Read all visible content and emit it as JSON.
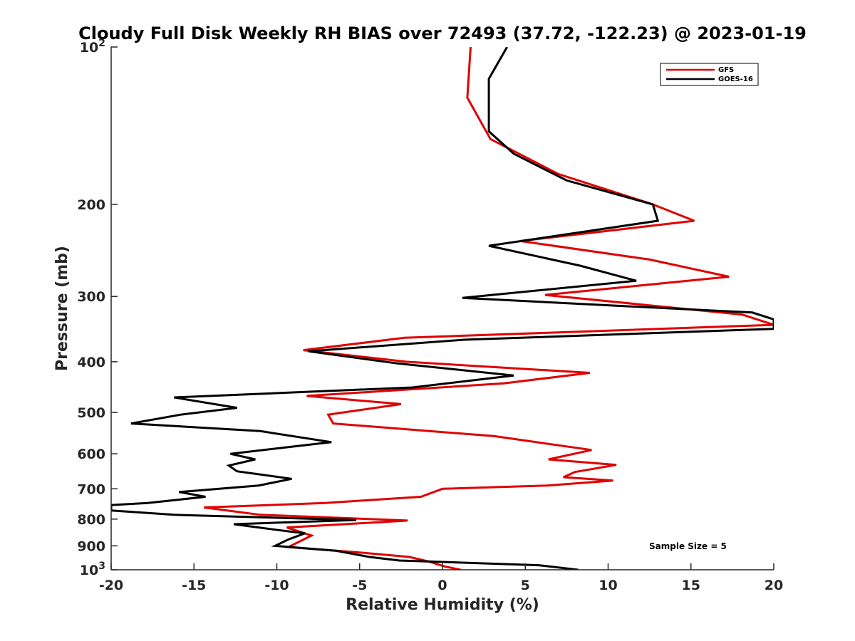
{
  "chart_data": {
    "type": "line",
    "title": "Cloudy Full Disk Weekly RH BIAS over 72493 (37.72, -122.23) @ 2023-01-19",
    "xlabel": "Relative Humidity (%)",
    "ylabel": "Pressure (mb)",
    "xlim": [
      -20,
      20
    ],
    "ylim": [
      100,
      1000
    ],
    "y_scale": "log",
    "y_reversed": true,
    "grid": false,
    "legend_position": "top-right",
    "annotation": "Sample Size = 5",
    "x_ticks": [
      {
        "value": -20,
        "label": "-20"
      },
      {
        "value": -15,
        "label": "-15"
      },
      {
        "value": -10,
        "label": "-10"
      },
      {
        "value": -5,
        "label": "-5"
      },
      {
        "value": 0,
        "label": "0"
      },
      {
        "value": 5,
        "label": "5"
      },
      {
        "value": 10,
        "label": "10"
      },
      {
        "value": 15,
        "label": "15"
      },
      {
        "value": 20,
        "label": "20"
      }
    ],
    "y_ticks": [
      {
        "value": 100,
        "label": "10",
        "exp": "2"
      },
      {
        "value": 200,
        "label": "200",
        "exp": ""
      },
      {
        "value": 300,
        "label": "300",
        "exp": ""
      },
      {
        "value": 400,
        "label": "400",
        "exp": ""
      },
      {
        "value": 500,
        "label": "500",
        "exp": ""
      },
      {
        "value": 600,
        "label": "600",
        "exp": ""
      },
      {
        "value": 700,
        "label": "700",
        "exp": ""
      },
      {
        "value": 800,
        "label": "800",
        "exp": ""
      },
      {
        "value": 900,
        "label": "900",
        "exp": ""
      },
      {
        "value": 1000,
        "label": "10",
        "exp": "3"
      }
    ],
    "series": [
      {
        "name": "GFS",
        "color": "#e00000",
        "points": [
          [
            1.7,
            100
          ],
          [
            1.5,
            125
          ],
          [
            2.9,
            150
          ],
          [
            7.0,
            175
          ],
          [
            12.7,
            200
          ],
          [
            15.2,
            215
          ],
          [
            4.7,
            235
          ],
          [
            12.5,
            255
          ],
          [
            17.3,
            275
          ],
          [
            6.2,
            298
          ],
          [
            18.1,
            325
          ],
          [
            20.0,
            340
          ],
          [
            -2.3,
            360
          ],
          [
            -8.4,
            380
          ],
          [
            -2.2,
            400
          ],
          [
            8.9,
            420
          ],
          [
            3.7,
            440
          ],
          [
            -8.2,
            465
          ],
          [
            -2.5,
            482
          ],
          [
            -6.9,
            505
          ],
          [
            -6.6,
            525
          ],
          [
            3.1,
            555
          ],
          [
            9.0,
            590
          ],
          [
            6.4,
            615
          ],
          [
            10.5,
            630
          ],
          [
            8.0,
            650
          ],
          [
            7.3,
            665
          ],
          [
            10.3,
            675
          ],
          [
            6.3,
            690
          ],
          [
            0.0,
            700
          ],
          [
            -1.3,
            725
          ],
          [
            -7.1,
            745
          ],
          [
            -14.4,
            760
          ],
          [
            -11.0,
            785
          ],
          [
            -2.1,
            805
          ],
          [
            -9.4,
            830
          ],
          [
            -7.9,
            860
          ],
          [
            -9.0,
            895
          ],
          [
            -9.3,
            905
          ],
          [
            -5.3,
            925
          ],
          [
            -2.0,
            945
          ],
          [
            -0.8,
            965
          ],
          [
            0.1,
            985
          ],
          [
            1.1,
            1000
          ]
        ]
      },
      {
        "name": "GOES-16",
        "color": "#000000",
        "points": [
          [
            3.9,
            100
          ],
          [
            2.8,
            115
          ],
          [
            2.8,
            130
          ],
          [
            2.8,
            145
          ],
          [
            4.3,
            160
          ],
          [
            7.5,
            180
          ],
          [
            12.7,
            200
          ],
          [
            13.0,
            215
          ],
          [
            2.8,
            240
          ],
          [
            8.3,
            262
          ],
          [
            11.7,
            280
          ],
          [
            1.2,
            302
          ],
          [
            18.7,
            322
          ],
          [
            20.0,
            332
          ],
          [
            20.0,
            346
          ],
          [
            1.3,
            363
          ],
          [
            -8.1,
            382
          ],
          [
            -2.7,
            403
          ],
          [
            4.3,
            425
          ],
          [
            -1.8,
            448
          ],
          [
            -16.2,
            468
          ],
          [
            -12.4,
            490
          ],
          [
            -15.8,
            505
          ],
          [
            -18.8,
            525
          ],
          [
            -11.0,
            543
          ],
          [
            -6.7,
            570
          ],
          [
            -12.8,
            600
          ],
          [
            -11.3,
            615
          ],
          [
            -12.9,
            632
          ],
          [
            -12.4,
            648
          ],
          [
            -9.1,
            670
          ],
          [
            -11.1,
            690
          ],
          [
            -15.9,
            710
          ],
          [
            -14.3,
            725
          ],
          [
            -17.8,
            745
          ],
          [
            -20.0,
            752
          ],
          [
            -20.0,
            770
          ],
          [
            -16.2,
            785
          ],
          [
            -5.2,
            803
          ],
          [
            -12.6,
            818
          ],
          [
            -10.1,
            838
          ],
          [
            -8.3,
            852
          ],
          [
            -9.3,
            875
          ],
          [
            -10.1,
            900
          ],
          [
            -6.4,
            920
          ],
          [
            -4.4,
            945
          ],
          [
            -2.6,
            960
          ],
          [
            5.8,
            980
          ],
          [
            8.2,
            1000
          ]
        ]
      }
    ]
  }
}
